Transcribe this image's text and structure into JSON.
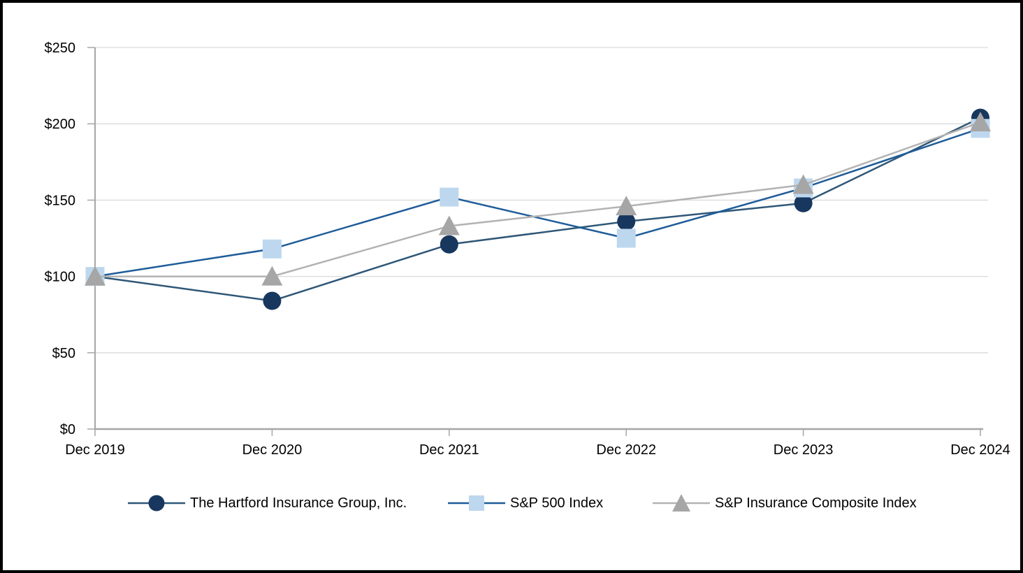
{
  "chart_data": {
    "type": "line",
    "title": "",
    "categories": [
      "Dec 2019",
      "Dec 2020",
      "Dec 2021",
      "Dec 2022",
      "Dec 2023",
      "Dec 2024"
    ],
    "series": [
      {
        "name": "The Hartford Insurance Group, Inc.",
        "marker": "circle",
        "line_color": "#2f5777",
        "marker_color": "#17375e",
        "values": [
          100,
          84,
          121,
          136,
          148,
          204
        ]
      },
      {
        "name": "S&P 500 Index",
        "marker": "square",
        "line_color": "#1e5c99",
        "marker_color": "#bdd7ee",
        "values": [
          100,
          118,
          152,
          125,
          158,
          197
        ]
      },
      {
        "name": "S&P Insurance Composite Index",
        "marker": "triangle",
        "line_color": "#b3b3b3",
        "marker_color": "#a6a6a6",
        "values": [
          100,
          100,
          133,
          146,
          160,
          201
        ]
      }
    ],
    "xlabel": "",
    "ylabel": "",
    "ylim": [
      0,
      250
    ],
    "y_ticks": [
      0,
      50,
      100,
      150,
      200,
      250
    ],
    "y_tick_labels": [
      "$0",
      "$50",
      "$100",
      "$150",
      "$200",
      "$250"
    ],
    "grid": true,
    "legend_position": "bottom",
    "axis_color": "#a6a6a6",
    "grid_color": "#d9d9d9",
    "text_color": "#000000",
    "background_color": "#ffffff",
    "frame_border_color": "#000000"
  }
}
